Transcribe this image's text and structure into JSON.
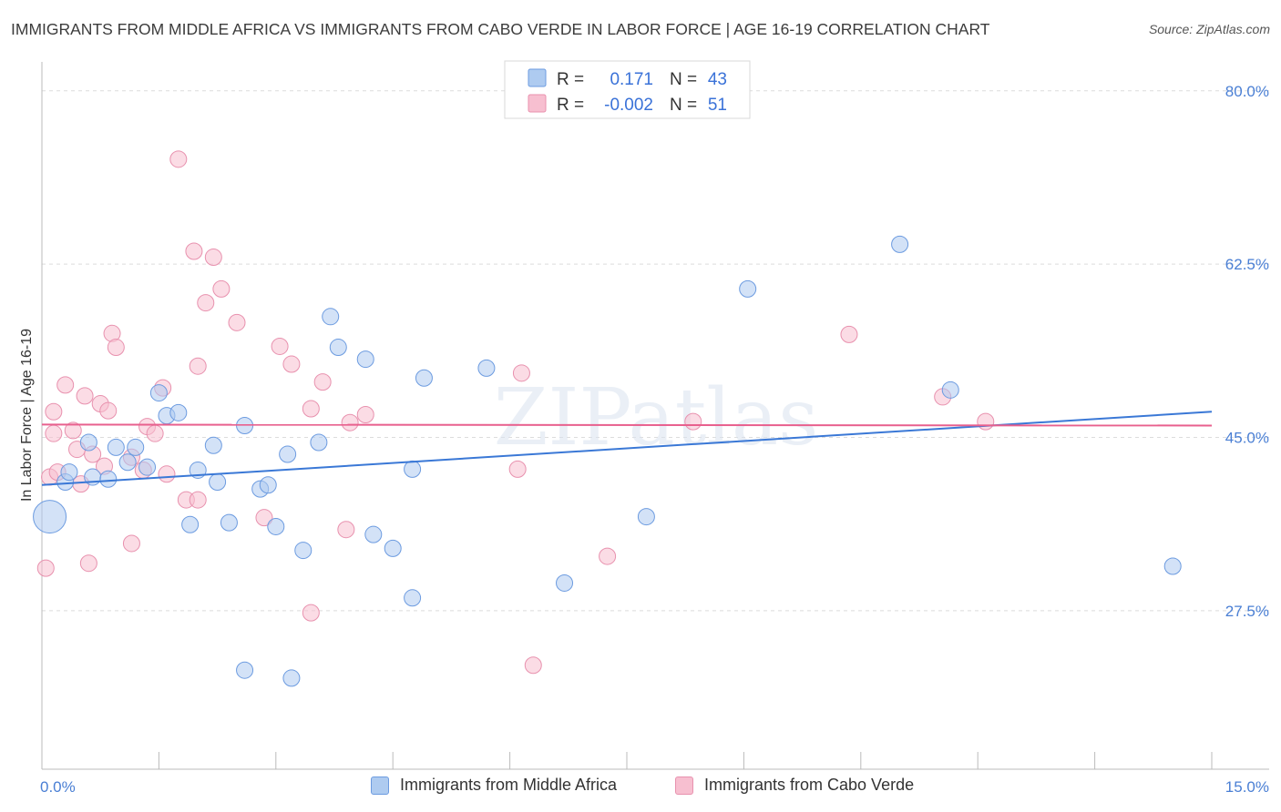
{
  "title": "IMMIGRANTS FROM MIDDLE AFRICA VS IMMIGRANTS FROM CABO VERDE IN LABOR FORCE | AGE 16-19 CORRELATION CHART",
  "source": "Source: ZipAtlas.com",
  "watermark": "ZIPatlas",
  "colors": {
    "blue_fill": "#aecbf0",
    "blue_stroke": "#6c9be0",
    "blue_line": "#3a78d6",
    "pink_fill": "#f7bfd0",
    "pink_stroke": "#e891ae",
    "pink_line": "#e8608e",
    "axis_label": "#4a7fd4"
  },
  "legend_box": {
    "rows": [
      {
        "r_label": "R =",
        "r_value": "0.171",
        "n_label": "N =",
        "n_value": "43"
      },
      {
        "r_label": "R =",
        "r_value": "-0.002",
        "n_label": "N =",
        "n_value": "51"
      }
    ]
  },
  "bottom_legend": {
    "blue": "Immigrants from Middle Africa",
    "pink": "Immigrants from Cabo Verde"
  },
  "chart_data": {
    "type": "scatter",
    "xlabel": "",
    "ylabel": "In Labor Force | Age 16-19",
    "xlim": [
      0,
      15
    ],
    "ylim": [
      11.5,
      82
    ],
    "x_tick_labels": [
      "0.0%",
      "15.0%"
    ],
    "y_ticks": [
      27.5,
      45.0,
      62.5,
      80.0
    ],
    "y_tick_labels": [
      "27.5%",
      "45.0%",
      "62.5%",
      "80.0%"
    ],
    "series": [
      {
        "name": "Immigrants from Middle Africa",
        "color": "blue",
        "trend": {
          "x0": 0,
          "y0": 40.2,
          "x1": 15,
          "y1": 47.6
        },
        "points": [
          [
            0.1,
            37.0,
            18
          ],
          [
            0.3,
            40.5,
            9
          ],
          [
            0.35,
            41.5,
            9
          ],
          [
            0.6,
            44.5,
            9
          ],
          [
            0.65,
            41.0,
            9
          ],
          [
            0.85,
            40.8,
            9
          ],
          [
            0.95,
            44.0,
            9
          ],
          [
            1.1,
            42.5,
            9
          ],
          [
            1.2,
            44.0,
            9
          ],
          [
            1.35,
            42.0,
            9
          ],
          [
            1.5,
            49.5,
            9
          ],
          [
            1.6,
            47.2,
            9
          ],
          [
            1.75,
            47.5,
            9
          ],
          [
            1.9,
            36.2,
            9
          ],
          [
            2.0,
            41.7,
            9
          ],
          [
            2.2,
            44.2,
            9
          ],
          [
            2.25,
            40.5,
            9
          ],
          [
            2.4,
            36.4,
            9
          ],
          [
            2.6,
            46.2,
            9
          ],
          [
            2.6,
            21.5,
            9
          ],
          [
            2.8,
            39.8,
            9
          ],
          [
            2.9,
            40.2,
            9
          ],
          [
            3.0,
            36.0,
            9
          ],
          [
            3.15,
            43.3,
            9
          ],
          [
            3.2,
            20.7,
            9
          ],
          [
            3.35,
            33.6,
            9
          ],
          [
            3.55,
            44.5,
            9
          ],
          [
            3.7,
            57.2,
            9
          ],
          [
            3.8,
            54.1,
            9
          ],
          [
            4.15,
            52.9,
            9
          ],
          [
            4.25,
            35.2,
            9
          ],
          [
            4.5,
            33.8,
            9
          ],
          [
            4.75,
            28.8,
            9
          ],
          [
            4.75,
            41.8,
            9
          ],
          [
            4.9,
            51.0,
            9
          ],
          [
            5.7,
            52.0,
            9
          ],
          [
            6.7,
            30.3,
            9
          ],
          [
            7.75,
            37.0,
            9
          ],
          [
            9.05,
            60.0,
            9
          ],
          [
            11.0,
            64.5,
            9
          ],
          [
            11.65,
            49.8,
            9
          ],
          [
            14.5,
            32.0,
            9
          ]
        ]
      },
      {
        "name": "Immigrants from Cabo Verde",
        "color": "pink",
        "trend": {
          "x0": 0,
          "y0": 46.3,
          "x1": 15,
          "y1": 46.2
        },
        "points": [
          [
            0.05,
            31.8,
            9
          ],
          [
            0.1,
            41.0,
            9
          ],
          [
            0.2,
            41.5,
            9
          ],
          [
            0.15,
            47.6,
            9
          ],
          [
            0.15,
            45.4,
            9
          ],
          [
            0.3,
            50.3,
            9
          ],
          [
            0.4,
            45.7,
            9
          ],
          [
            0.45,
            43.8,
            9
          ],
          [
            0.5,
            40.3,
            9
          ],
          [
            0.55,
            49.2,
            9
          ],
          [
            0.6,
            32.3,
            9
          ],
          [
            0.65,
            43.3,
            9
          ],
          [
            0.75,
            48.4,
            9
          ],
          [
            0.8,
            42.1,
            9
          ],
          [
            0.85,
            47.7,
            9
          ],
          [
            0.9,
            55.5,
            9
          ],
          [
            0.95,
            54.1,
            9
          ],
          [
            1.15,
            43.0,
            9
          ],
          [
            1.15,
            34.3,
            9
          ],
          [
            1.3,
            41.7,
            9
          ],
          [
            1.35,
            46.1,
            9
          ],
          [
            1.45,
            45.4,
            9
          ],
          [
            1.55,
            50.0,
            9
          ],
          [
            1.6,
            41.3,
            9
          ],
          [
            1.75,
            73.1,
            9
          ],
          [
            1.85,
            38.7,
            9
          ],
          [
            1.95,
            63.8,
            9
          ],
          [
            2.0,
            38.7,
            9
          ],
          [
            2.0,
            52.2,
            9
          ],
          [
            2.1,
            58.6,
            9
          ],
          [
            2.2,
            63.2,
            9
          ],
          [
            2.3,
            60.0,
            9
          ],
          [
            2.5,
            56.6,
            9
          ],
          [
            2.85,
            36.9,
            9
          ],
          [
            3.05,
            54.2,
            9
          ],
          [
            3.2,
            52.4,
            9
          ],
          [
            3.45,
            47.9,
            9
          ],
          [
            3.45,
            27.3,
            9
          ],
          [
            3.6,
            50.6,
            9
          ],
          [
            3.9,
            35.7,
            9
          ],
          [
            3.95,
            46.5,
            9
          ],
          [
            4.15,
            47.3,
            9
          ],
          [
            6.15,
            51.5,
            9
          ],
          [
            6.1,
            41.8,
            9
          ],
          [
            6.3,
            22.0,
            9
          ],
          [
            7.25,
            33.0,
            9
          ],
          [
            8.35,
            46.6,
            9
          ],
          [
            10.35,
            55.4,
            9
          ],
          [
            11.55,
            49.1,
            9
          ],
          [
            12.1,
            46.6,
            9
          ]
        ]
      }
    ]
  }
}
